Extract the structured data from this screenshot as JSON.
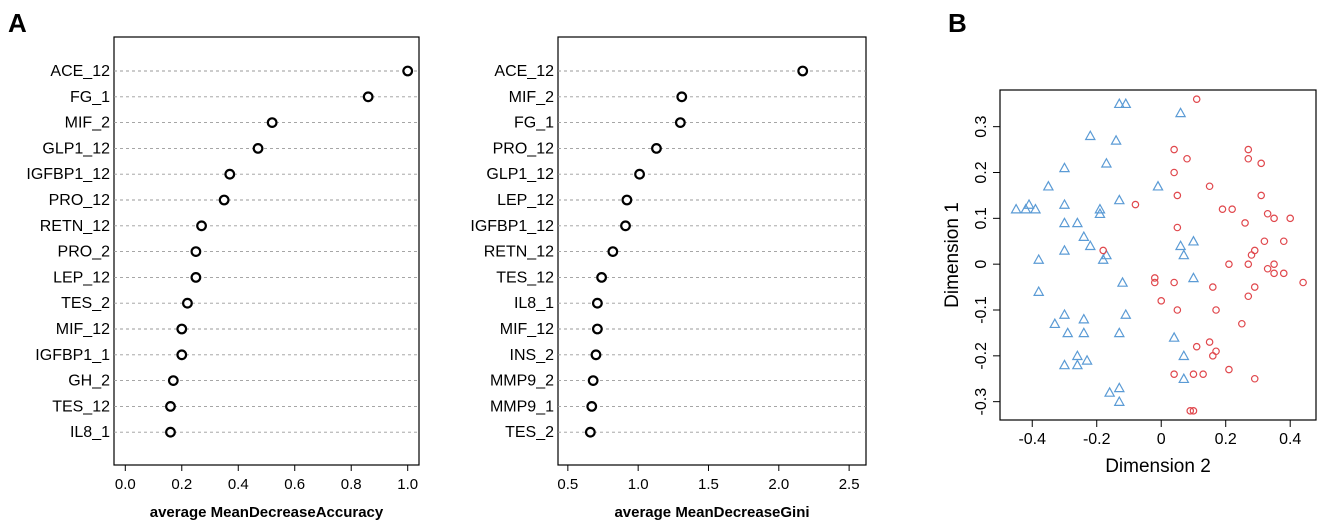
{
  "panels": {
    "a": "A",
    "b": "B"
  },
  "chart_data": [
    {
      "type": "dot",
      "categories": [
        "ACE_12",
        "FG_1",
        "MIF_2",
        "GLP1_12",
        "IGFBP1_12",
        "PRO_12",
        "RETN_12",
        "PRO_2",
        "LEP_12",
        "TES_2",
        "MIF_12",
        "IGFBP1_1",
        "GH_2",
        "TES_12",
        "IL8_1"
      ],
      "values": [
        1.0,
        0.86,
        0.52,
        0.47,
        0.37,
        0.35,
        0.27,
        0.25,
        0.25,
        0.22,
        0.2,
        0.2,
        0.17,
        0.16,
        0.16
      ],
      "xlabel": "average MeanDecreaseAccuracy",
      "xlim": [
        -0.04,
        1.04
      ],
      "xticks": [
        "0.0",
        "0.2",
        "0.4",
        "0.6",
        "0.8",
        "1.0"
      ],
      "grid": "dashed horizontal"
    },
    {
      "type": "dot",
      "categories": [
        "ACE_12",
        "MIF_2",
        "FG_1",
        "PRO_12",
        "GLP1_12",
        "LEP_12",
        "IGFBP1_12",
        "RETN_12",
        "TES_12",
        "IL8_1",
        "MIF_12",
        "INS_2",
        "MMP9_2",
        "MMP9_1",
        "TES_2"
      ],
      "values": [
        2.17,
        1.31,
        1.3,
        1.13,
        1.01,
        0.92,
        0.91,
        0.82,
        0.74,
        0.71,
        0.71,
        0.7,
        0.68,
        0.67,
        0.66
      ],
      "xlabel": "average MeanDecreaseGini",
      "xlim": [
        0.43,
        2.62
      ],
      "xticks": [
        "0.5",
        "1.0",
        "1.5",
        "2.0",
        "2.5"
      ],
      "grid": "dashed horizontal"
    },
    {
      "type": "scatter",
      "xlabel": "Dimension 2",
      "ylabel": "Dimension 1",
      "xlim": [
        -0.5,
        0.48
      ],
      "ylim": [
        -0.34,
        0.38
      ],
      "xticks": [
        "-0.4",
        "-0.2",
        "0",
        "0.2",
        "0.4"
      ],
      "yticks": [
        "-0.3",
        "-0.2",
        "-0.1",
        "0",
        "0.1",
        "0.2",
        "0.3"
      ],
      "colors": {
        "blue": "#5b9bd5",
        "red": "#e0474c"
      },
      "series": [
        {
          "marker": "triangle",
          "color": "blue",
          "points": [
            [
              -0.13,
              0.35
            ],
            [
              -0.11,
              0.35
            ],
            [
              0.06,
              0.33
            ],
            [
              -0.22,
              0.28
            ],
            [
              -0.14,
              0.27
            ],
            [
              -0.3,
              0.21
            ],
            [
              -0.17,
              0.22
            ],
            [
              -0.35,
              0.17
            ],
            [
              -0.41,
              0.13
            ],
            [
              -0.45,
              0.12
            ],
            [
              -0.39,
              0.12
            ],
            [
              -0.3,
              0.13
            ],
            [
              -0.13,
              0.14
            ],
            [
              -0.19,
              0.12
            ],
            [
              -0.19,
              0.11
            ],
            [
              -0.42,
              0.12
            ],
            [
              -0.3,
              0.09
            ],
            [
              -0.24,
              0.06
            ],
            [
              -0.22,
              0.04
            ],
            [
              -0.26,
              0.09
            ],
            [
              -0.01,
              0.17
            ],
            [
              -0.38,
              0.01
            ],
            [
              -0.3,
              0.03
            ],
            [
              -0.18,
              0.01
            ],
            [
              -0.17,
              0.02
            ],
            [
              -0.12,
              -0.04
            ],
            [
              0.06,
              0.04
            ],
            [
              0.07,
              0.02
            ],
            [
              0.1,
              0.05
            ],
            [
              0.1,
              -0.03
            ],
            [
              -0.38,
              -0.06
            ],
            [
              -0.3,
              -0.11
            ],
            [
              -0.24,
              -0.12
            ],
            [
              -0.11,
              -0.11
            ],
            [
              -0.33,
              -0.13
            ],
            [
              -0.29,
              -0.15
            ],
            [
              -0.24,
              -0.15
            ],
            [
              -0.13,
              -0.15
            ],
            [
              0.04,
              -0.16
            ],
            [
              0.07,
              -0.2
            ],
            [
              -0.26,
              -0.2
            ],
            [
              -0.3,
              -0.22
            ],
            [
              -0.26,
              -0.22
            ],
            [
              -0.23,
              -0.21
            ],
            [
              0.07,
              -0.25
            ],
            [
              -0.16,
              -0.28
            ],
            [
              -0.13,
              -0.27
            ],
            [
              -0.13,
              -0.3
            ]
          ]
        },
        {
          "marker": "circle",
          "color": "red",
          "points": [
            [
              0.11,
              0.36
            ],
            [
              0.04,
              0.25
            ],
            [
              0.27,
              0.25
            ],
            [
              0.08,
              0.23
            ],
            [
              0.27,
              0.23
            ],
            [
              0.31,
              0.22
            ],
            [
              0.04,
              0.2
            ],
            [
              0.15,
              0.17
            ],
            [
              0.05,
              0.15
            ],
            [
              0.31,
              0.15
            ],
            [
              -0.08,
              0.13
            ],
            [
              0.19,
              0.12
            ],
            [
              0.22,
              0.12
            ],
            [
              0.33,
              0.11
            ],
            [
              0.35,
              0.1
            ],
            [
              0.4,
              0.1
            ],
            [
              0.26,
              0.09
            ],
            [
              0.05,
              0.08
            ],
            [
              0.32,
              0.05
            ],
            [
              0.38,
              0.05
            ],
            [
              0.29,
              0.03
            ],
            [
              0.28,
              0.02
            ],
            [
              0.21,
              0.0
            ],
            [
              0.27,
              0.0
            ],
            [
              0.35,
              0.0
            ],
            [
              0.35,
              -0.02
            ],
            [
              0.33,
              -0.01
            ],
            [
              0.38,
              -0.02
            ],
            [
              0.44,
              -0.04
            ],
            [
              -0.18,
              0.03
            ],
            [
              -0.02,
              -0.03
            ],
            [
              -0.02,
              -0.04
            ],
            [
              0.04,
              -0.04
            ],
            [
              0.16,
              -0.05
            ],
            [
              0.29,
              -0.05
            ],
            [
              0.0,
              -0.08
            ],
            [
              0.27,
              -0.07
            ],
            [
              0.05,
              -0.1
            ],
            [
              0.17,
              -0.1
            ],
            [
              0.25,
              -0.13
            ],
            [
              0.15,
              -0.17
            ],
            [
              0.11,
              -0.18
            ],
            [
              0.17,
              -0.19
            ],
            [
              0.16,
              -0.2
            ],
            [
              0.21,
              -0.23
            ],
            [
              0.04,
              -0.24
            ],
            [
              0.1,
              -0.24
            ],
            [
              0.13,
              -0.24
            ],
            [
              0.29,
              -0.25
            ],
            [
              0.09,
              -0.32
            ],
            [
              0.1,
              -0.32
            ]
          ]
        }
      ]
    }
  ]
}
